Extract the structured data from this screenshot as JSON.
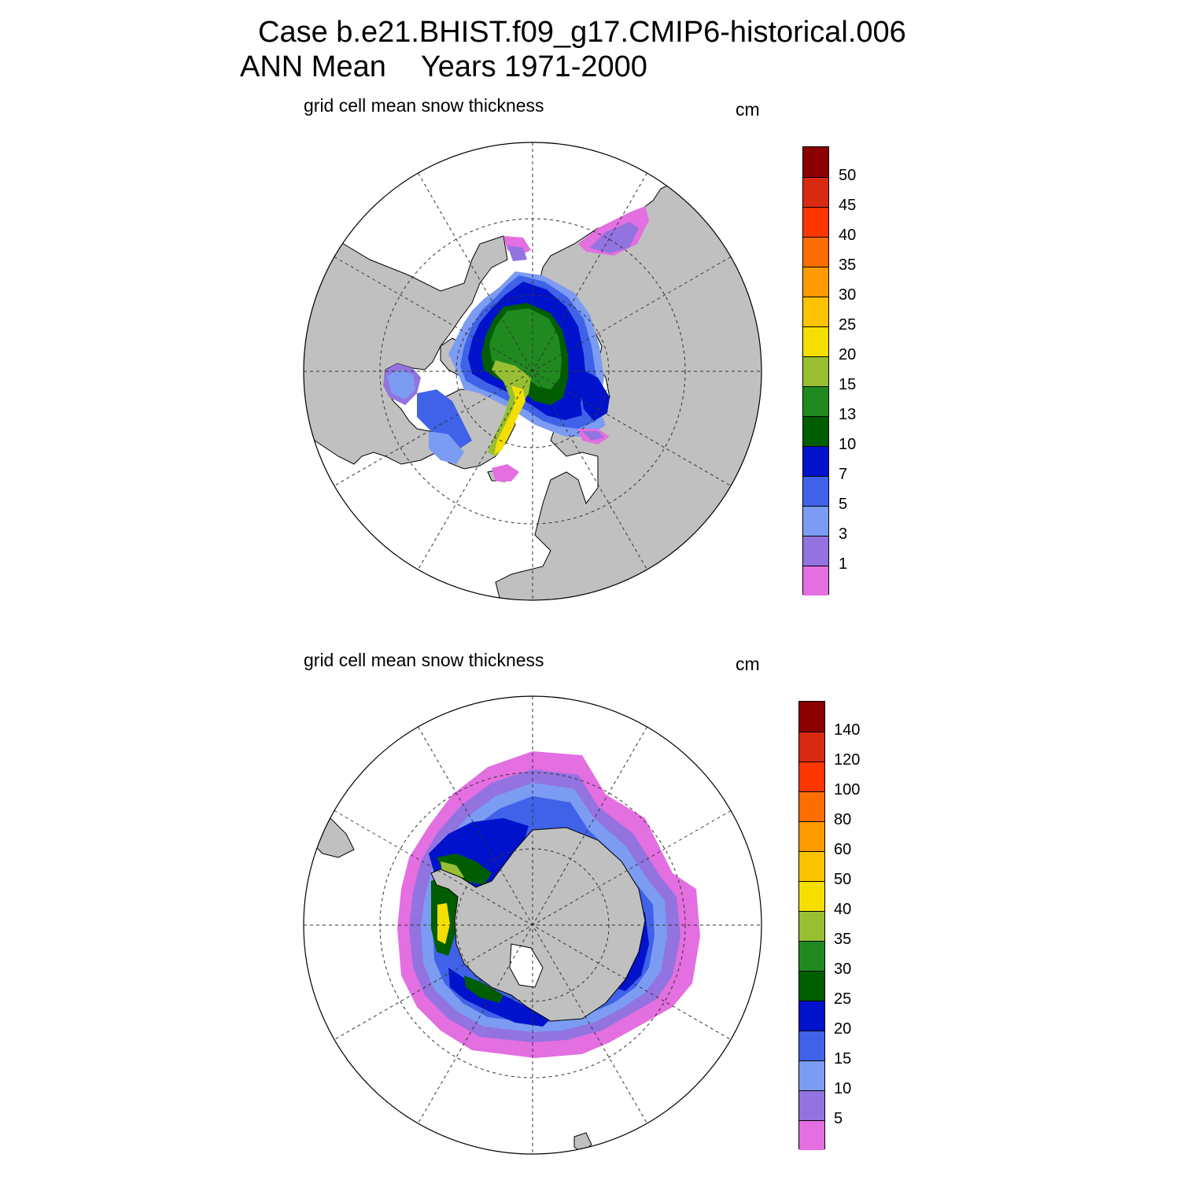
{
  "header": {
    "title_line1": "Case b.e21.BHIST.f09_g17.CMIP6-historical.006",
    "title_season": "ANN Mean",
    "title_years": "Years 1971-2000"
  },
  "panels": [
    {
      "id": "north",
      "subtitle": "grid cell mean snow thickness",
      "units": "cm",
      "colorbar": {
        "labels": [
          "1",
          "3",
          "5",
          "7",
          "10",
          "13",
          "15",
          "20",
          "25",
          "30",
          "35",
          "40",
          "45",
          "50"
        ],
        "colors": [
          "#e36fe0",
          "#9273e0",
          "#7b9cf2",
          "#3f62e8",
          "#0012cb",
          "#005e00",
          "#208a20",
          "#98bf32",
          "#f5df00",
          "#fec300",
          "#fe9b00",
          "#fe6d00",
          "#fe3700",
          "#d82a10",
          "#8a0000"
        ]
      }
    },
    {
      "id": "south",
      "subtitle": "grid cell mean snow thickness",
      "units": "cm",
      "colorbar": {
        "labels": [
          "5",
          "10",
          "15",
          "20",
          "25",
          "30",
          "35",
          "40",
          "50",
          "60",
          "80",
          "100",
          "120",
          "140"
        ],
        "colors": [
          "#e36fe0",
          "#9273e0",
          "#7b9cf2",
          "#3f62e8",
          "#0012cb",
          "#005e00",
          "#208a20",
          "#98bf32",
          "#f5df00",
          "#fec300",
          "#fe9b00",
          "#fe6d00",
          "#fe3700",
          "#d82a10",
          "#8a0000"
        ]
      }
    }
  ],
  "colors": {
    "land": "#c0c0c0",
    "ocean": "#ffffff",
    "coast": "#000000"
  }
}
